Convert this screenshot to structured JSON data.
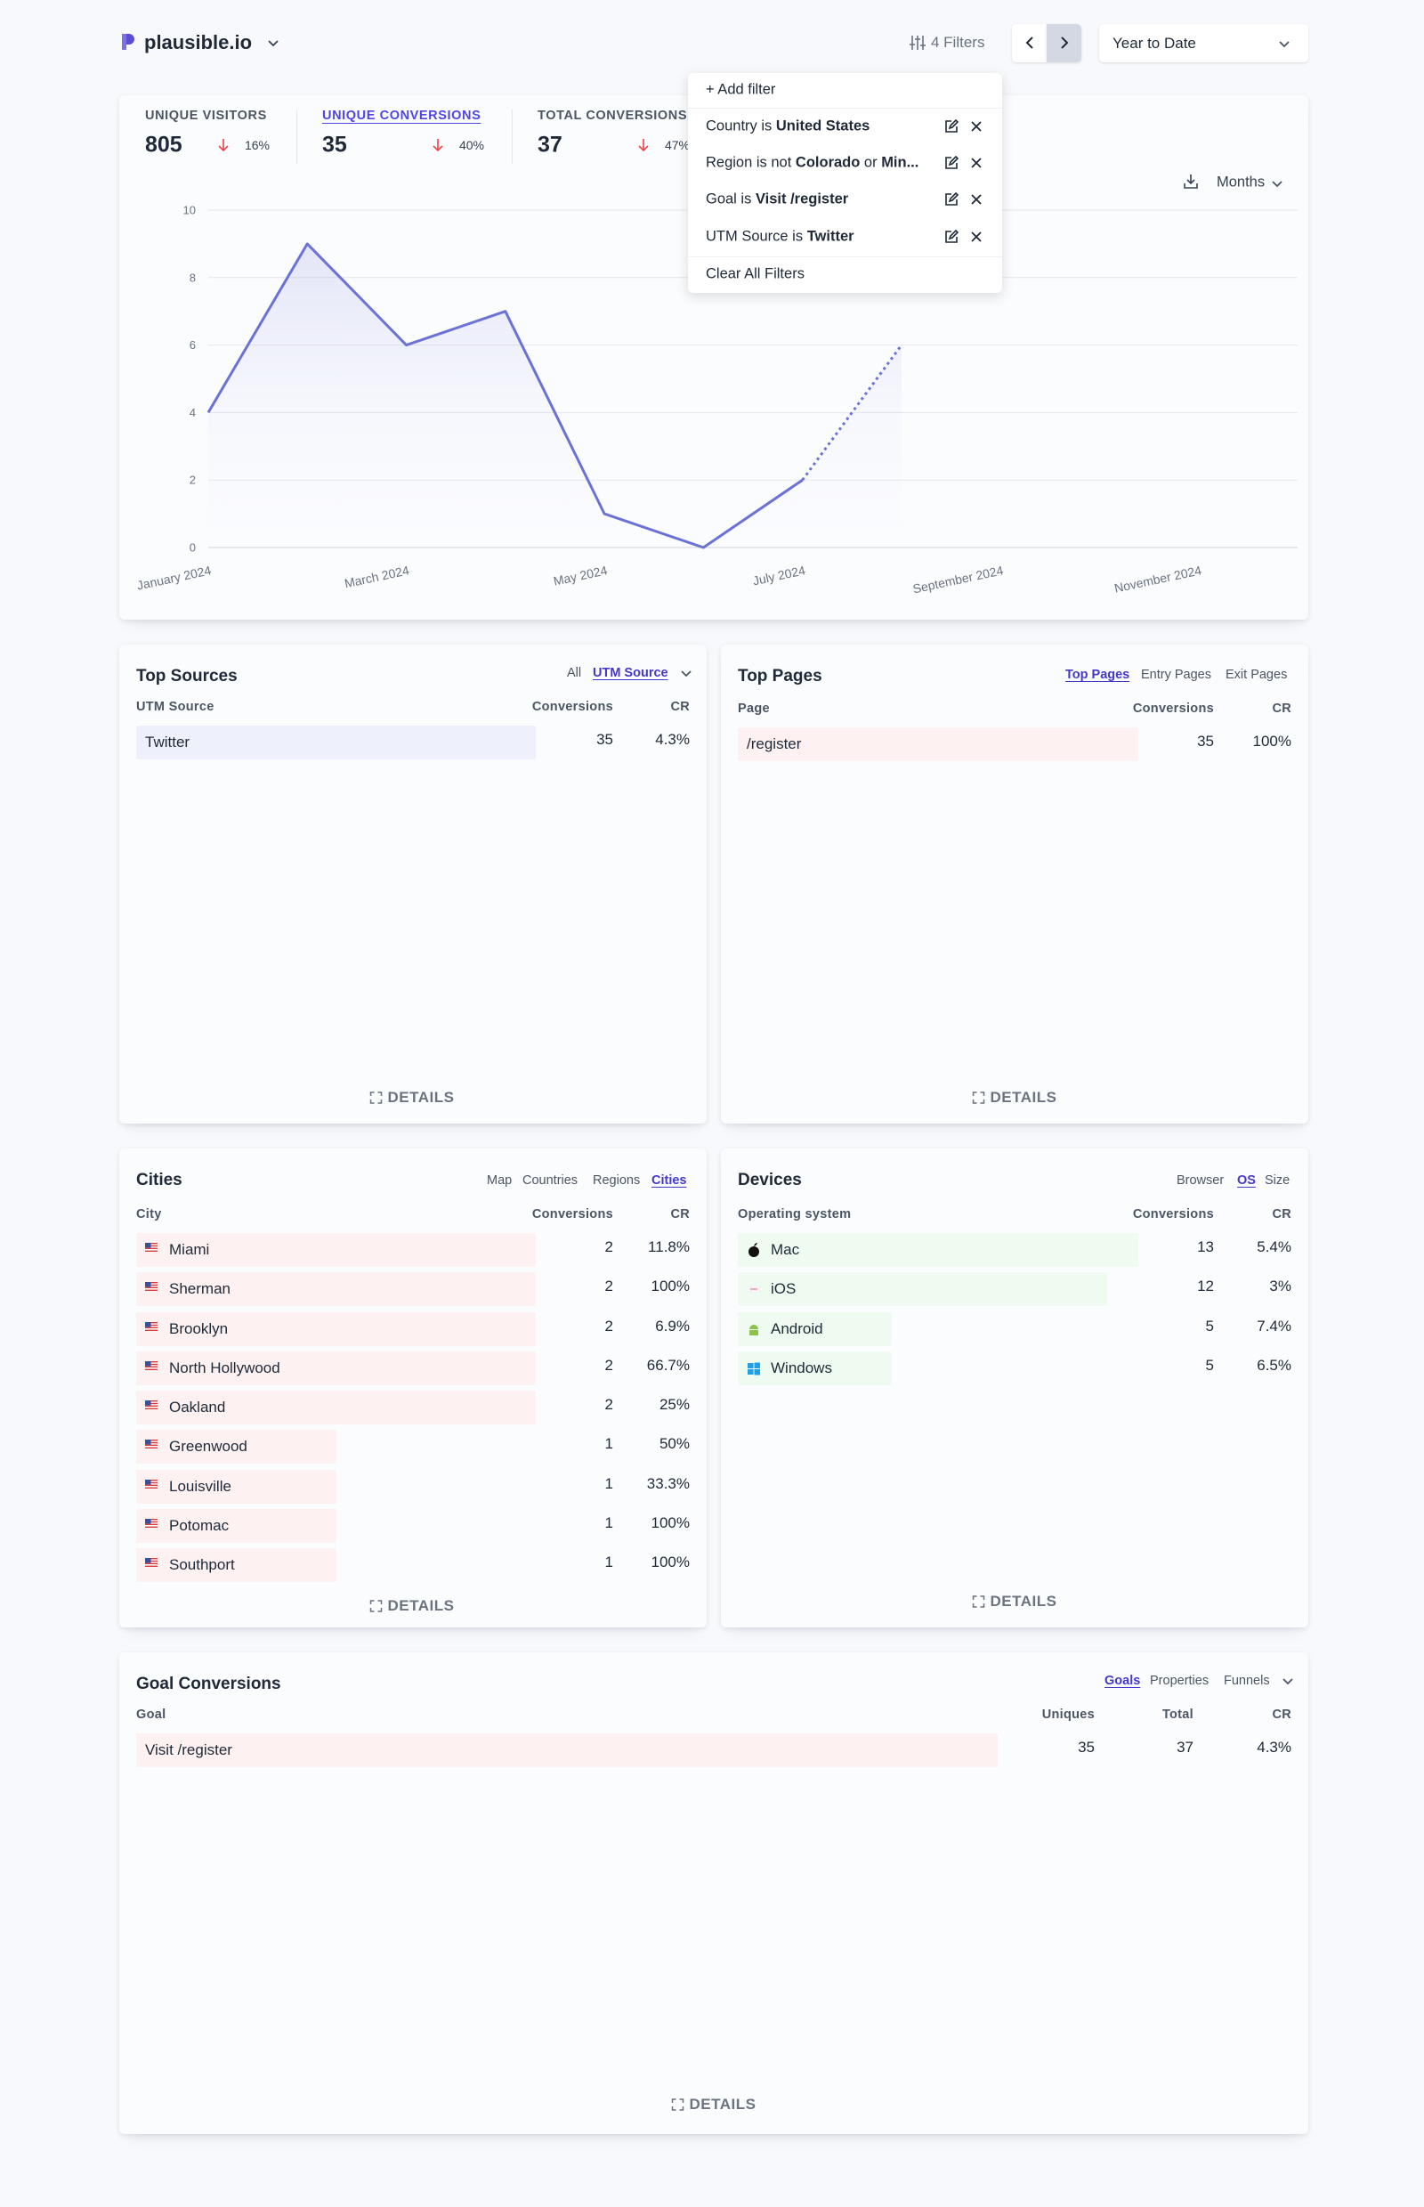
{
  "header": {
    "site": "plausible.io",
    "filters": "4 Filters",
    "period": "Year to Date"
  },
  "stats": {
    "active": 1,
    "items": [
      {
        "label": "UNIQUE VISITORS",
        "value": 805,
        "change": "16%"
      },
      {
        "label": "UNIQUE CONVERSIONS",
        "value": 35,
        "change": "40%"
      },
      {
        "label": "TOTAL CONVERSIONS",
        "value": 37,
        "change": "47%"
      }
    ]
  },
  "filter_menu": {
    "add": "+ Add filter",
    "items": [
      [
        "Country is",
        "United States"
      ],
      [
        "Region is not",
        "Colorado",
        "or",
        "Min..."
      ],
      [
        "Goal is",
        "Visit /register"
      ],
      [
        "UTM Source is",
        "Twitter"
      ]
    ],
    "clear": "Clear All Filters"
  },
  "chart": {
    "type": "line",
    "interval": "Months",
    "categories": [
      "January 2024",
      null,
      "March 2024",
      null,
      "May 2024",
      null,
      "July 2024",
      null,
      "September 2024",
      null,
      "November 2024",
      null
    ],
    "values": [
      4,
      9,
      6,
      7,
      1,
      0,
      2,
      6,
      null,
      null,
      null,
      null
    ],
    "ylim": [
      0,
      10
    ],
    "yticks": [
      0,
      2,
      4,
      6,
      8,
      10
    ],
    "color": "#6a72d6",
    "grid": true
  },
  "top_sources": {
    "title": "Top Sources",
    "tabs": [
      "All",
      "UTM Source"
    ],
    "active": 1,
    "columns": [
      "UTM Source",
      "Conversions",
      "CR"
    ],
    "rows": [
      [
        "Twitter",
        35,
        "4.3%"
      ]
    ],
    "bar_color": "#eef0fb",
    "details": "DETAILS"
  },
  "top_pages": {
    "title": "Top Pages",
    "tabs": [
      "Top Pages",
      "Entry Pages",
      "Exit Pages"
    ],
    "active": 0,
    "columns": [
      "Page",
      "Conversions",
      "CR"
    ],
    "rows": [
      [
        "/register",
        35,
        "100%"
      ]
    ],
    "bar_color": "#fdf1f1",
    "details": "DETAILS"
  },
  "cities": {
    "title": "Cities",
    "tabs": [
      "Map",
      "Countries",
      "Regions",
      "Cities"
    ],
    "active": 3,
    "columns": [
      "City",
      "Conversions",
      "CR"
    ],
    "rows": [
      [
        "Miami",
        2,
        "11.8%"
      ],
      [
        "Sherman",
        2,
        "100%"
      ],
      [
        "Brooklyn",
        2,
        "6.9%"
      ],
      [
        "North Hollywood",
        2,
        "66.7%"
      ],
      [
        "Oakland",
        2,
        "25%"
      ],
      [
        "Greenwood",
        1,
        "50%"
      ],
      [
        "Louisville",
        1,
        "33.3%"
      ],
      [
        "Potomac",
        1,
        "100%"
      ],
      [
        "Southport",
        1,
        "100%"
      ]
    ],
    "bar_color": "#fdf1f1",
    "details": "DETAILS"
  },
  "devices": {
    "title": "Devices",
    "tabs": [
      "Browser",
      "OS",
      "Size"
    ],
    "active": 1,
    "columns": [
      "Operating system",
      "Conversions",
      "CR"
    ],
    "rows": [
      [
        "Mac",
        13,
        "5.4%"
      ],
      [
        "iOS",
        12,
        "3%"
      ],
      [
        "Android",
        5,
        "7.4%"
      ],
      [
        "Windows",
        5,
        "6.5%"
      ]
    ],
    "bar_color": "#effbf1",
    "details": "DETAILS"
  },
  "goals": {
    "title": "Goal Conversions",
    "tabs": [
      "Goals",
      "Properties",
      "Funnels"
    ],
    "active": 0,
    "columns": [
      "Goal",
      "Uniques",
      "Total",
      "CR"
    ],
    "rows": [
      [
        "Visit /register",
        35,
        37,
        "4.3%"
      ]
    ],
    "bar_color": "#fdf1f1",
    "details": "DETAILS"
  }
}
